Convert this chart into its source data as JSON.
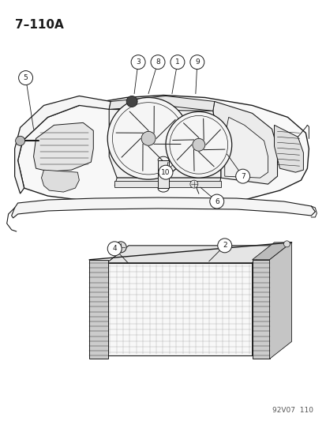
{
  "title_text": "7–110A",
  "footer_text": "92V07  110",
  "bg_color": "#ffffff",
  "line_color": "#1a1a1a",
  "title_fontsize": 11,
  "footer_fontsize": 6.5,
  "fig_width": 4.14,
  "fig_height": 5.33,
  "dpi": 100
}
